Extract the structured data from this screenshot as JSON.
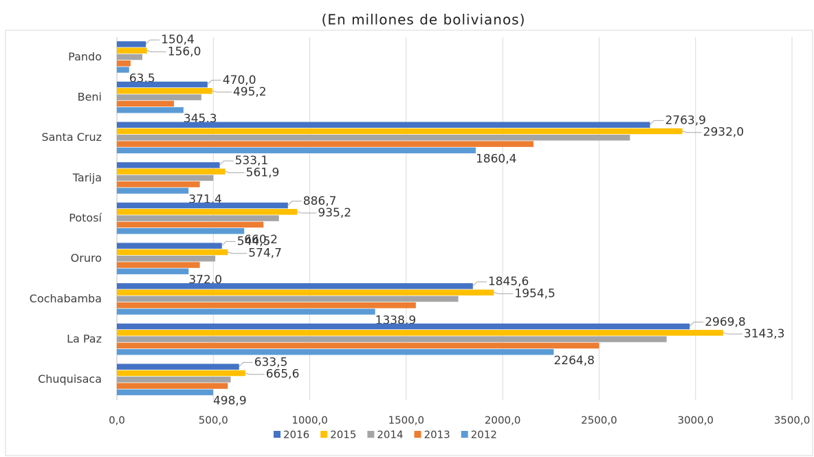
{
  "chart_data": {
    "type": "bar",
    "orientation": "horizontal",
    "title": "(En millones de bolivianos)",
    "categories": [
      "Pando",
      "Beni",
      "Santa Cruz",
      "Tarija",
      "Potosí",
      "Oruro",
      "Cochabamba",
      "La Paz",
      "Chuquisaca"
    ],
    "series": [
      {
        "name": "2016",
        "color": "#4472c4",
        "values": [
          150.4,
          470.0,
          2763.9,
          533.1,
          886.7,
          544.5,
          1845.6,
          2969.8,
          633.5
        ],
        "value_labels": [
          "150,4",
          "470,0",
          "2763,9",
          "533,1",
          "886,7",
          "544,5",
          "1845,6",
          "2969,8",
          "633,5"
        ]
      },
      {
        "name": "2015",
        "color": "#ffc000",
        "values": [
          156.0,
          495.2,
          2932.0,
          561.9,
          935.2,
          574.7,
          1954.5,
          3143.3,
          665.6
        ],
        "value_labels": [
          "156,0",
          "495,2",
          "2932,0",
          "561,9",
          "935,2",
          "574,7",
          "1954,5",
          "3143,3",
          "665,6"
        ]
      },
      {
        "name": "2014",
        "color": "#a5a5a5",
        "values": [
          132,
          438,
          2660,
          500,
          840,
          510,
          1770,
          2850,
          590
        ]
      },
      {
        "name": "2013",
        "color": "#ed7d31",
        "values": [
          71,
          296,
          2160,
          430,
          760,
          430,
          1550,
          2500,
          575
        ]
      },
      {
        "name": "2012",
        "color": "#5b9bd5",
        "values": [
          63.5,
          345.3,
          1860.4,
          371.4,
          660.2,
          372.0,
          1338.9,
          2264.8,
          498.9
        ],
        "value_labels": [
          "63,5",
          "345,3",
          "1860,4",
          "371,4",
          "660,2",
          "372,0",
          "1338,9",
          "2264,8",
          "498,9"
        ]
      }
    ],
    "xlim": [
      0,
      3500
    ],
    "xticks": [
      {
        "value": 0,
        "label": "0,0"
      },
      {
        "value": 500,
        "label": "500,0"
      },
      {
        "value": 1000,
        "label": "1000,0"
      },
      {
        "value": 1500,
        "label": "1500,0"
      },
      {
        "value": 2000,
        "label": "2000,0"
      },
      {
        "value": 2500,
        "label": "2500,0"
      },
      {
        "value": 3000,
        "label": "3000,0"
      },
      {
        "value": 3500,
        "label": "3500,0"
      }
    ],
    "grid": true,
    "legend": "bottom"
  }
}
